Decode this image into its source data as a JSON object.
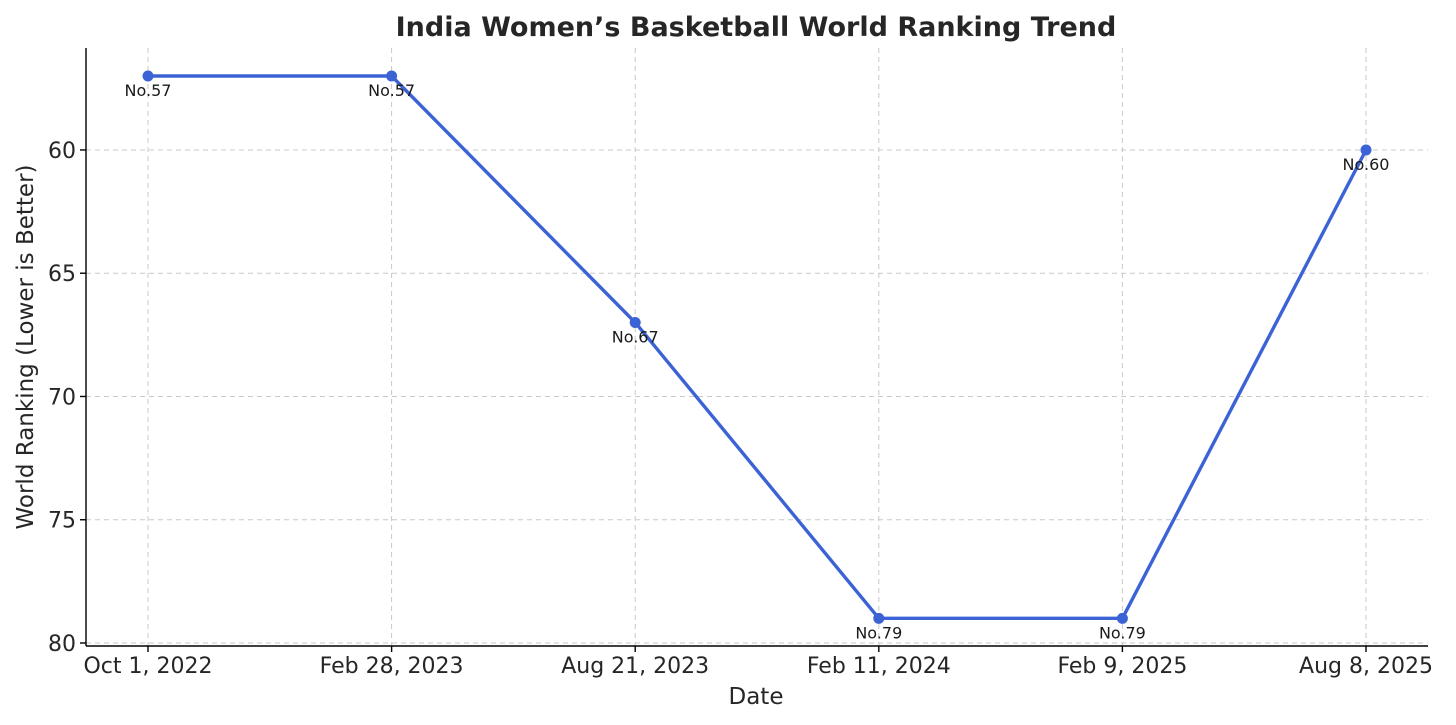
{
  "chart_data": {
    "type": "line",
    "title": "India Women’s Basketball World Ranking Trend",
    "xlabel": "Date",
    "ylabel": "World Ranking (Lower is Better)",
    "categories": [
      "Oct 1, 2022",
      "Feb 28, 2023",
      "Aug 21, 2023",
      "Feb 11, 2024",
      "Feb 9, 2025",
      "Aug 8, 2025"
    ],
    "values": [
      57,
      57,
      67,
      79,
      79,
      60
    ],
    "data_labels": [
      "No.57",
      "No.57",
      "No.67",
      "No.79",
      "No.79",
      "No.60"
    ],
    "ylim": [
      80,
      57
    ],
    "y_inverted": true,
    "yticks": [
      60,
      65,
      70,
      75,
      80
    ],
    "grid": true,
    "legend": "none",
    "color": "#3c63d6"
  }
}
